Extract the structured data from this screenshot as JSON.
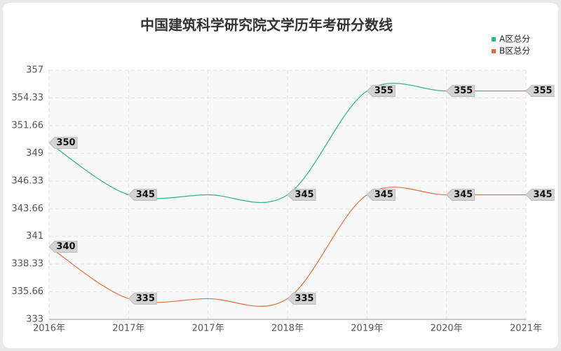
{
  "chart_data": {
    "type": "line",
    "title": "中国建筑科学研究院文学历年考研分数线",
    "categories": [
      "2016年",
      "2017年",
      "2017年",
      "2018年",
      "2019年",
      "2020年",
      "2021年"
    ],
    "series": [
      {
        "name": "A区总分",
        "color": "#2fb48c",
        "values": [
          350,
          345,
          345,
          345,
          355,
          355,
          355
        ],
        "value_labels": [
          "350",
          "345",
          null,
          "345",
          "355",
          "355",
          "355"
        ]
      },
      {
        "name": "B区总分",
        "color": "#e0713f",
        "values": [
          340,
          335,
          335,
          335,
          345,
          345,
          345
        ],
        "value_labels": [
          "340",
          "335",
          null,
          "335",
          "345",
          "345",
          "345"
        ]
      }
    ],
    "ylim": [
      333,
      357
    ],
    "yticks": [
      333,
      335.66,
      338.33,
      341,
      343.66,
      346.33,
      349,
      351.66,
      354.33,
      357
    ],
    "grid": true,
    "legend": "top-right"
  }
}
